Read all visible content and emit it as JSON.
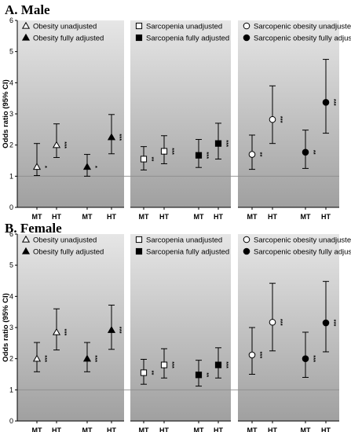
{
  "chart_data": [
    {
      "type": "scatter",
      "title": "A. Male",
      "ylabel": "Odds ratio (95% CI)",
      "ylim": [
        0,
        6
      ],
      "yticks": [
        0,
        1,
        2,
        3,
        4,
        5,
        6
      ],
      "reference_line": 1,
      "grid": false,
      "groups": [
        {
          "legend": [
            {
              "label": "Obesity unadjusted",
              "marker": "triangle-open"
            },
            {
              "label": "Obesity fully adjusted",
              "marker": "triangle-filled"
            }
          ],
          "points": [
            {
              "x": "MT",
              "series": "Obesity unadjusted",
              "marker": "triangle-open",
              "or": 1.3,
              "lo": 1.02,
              "hi": 2.05,
              "sig": "*"
            },
            {
              "x": "HT",
              "series": "Obesity unadjusted",
              "marker": "triangle-open",
              "or": 2.0,
              "lo": 1.6,
              "hi": 2.68,
              "sig": "***"
            },
            {
              "x": "MT",
              "series": "Obesity fully adjusted",
              "marker": "triangle-filled",
              "or": 1.3,
              "lo": 1.0,
              "hi": 1.7,
              "sig": "*"
            },
            {
              "x": "HT",
              "series": "Obesity fully adjusted",
              "marker": "triangle-filled",
              "or": 2.25,
              "lo": 1.72,
              "hi": 2.98,
              "sig": "***"
            }
          ]
        },
        {
          "legend": [
            {
              "label": "Sarcopenia unadjusted",
              "marker": "square-open"
            },
            {
              "label": "Sarcopenia fully adjusted",
              "marker": "square-filled"
            }
          ],
          "points": [
            {
              "x": "MT",
              "series": "Sarcopenia unadjusted",
              "marker": "square-open",
              "or": 1.55,
              "lo": 1.2,
              "hi": 1.95,
              "sig": "**"
            },
            {
              "x": "HT",
              "series": "Sarcopenia unadjusted",
              "marker": "square-open",
              "or": 1.8,
              "lo": 1.4,
              "hi": 2.3,
              "sig": "***"
            },
            {
              "x": "MT",
              "series": "Sarcopenia fully adjusted",
              "marker": "square-filled",
              "or": 1.67,
              "lo": 1.28,
              "hi": 2.18,
              "sig": "***"
            },
            {
              "x": "HT",
              "series": "Sarcopenia fully adjusted",
              "marker": "square-filled",
              "or": 2.05,
              "lo": 1.55,
              "hi": 2.7,
              "sig": "***"
            }
          ]
        },
        {
          "legend": [
            {
              "label": "Sarcopenic obesity unadjusted",
              "marker": "circle-open"
            },
            {
              "label": "Sarcopenic obesity fully adjusted",
              "marker": "circle-filled"
            }
          ],
          "points": [
            {
              "x": "MT",
              "series": "Sarcopenic obesity unadjusted",
              "marker": "circle-open",
              "or": 1.7,
              "lo": 1.22,
              "hi": 2.32,
              "sig": "**"
            },
            {
              "x": "HT",
              "series": "Sarcopenic obesity unadjusted",
              "marker": "circle-open",
              "or": 2.82,
              "lo": 2.05,
              "hi": 3.9,
              "sig": "***"
            },
            {
              "x": "MT",
              "series": "Sarcopenic obesity fully adjusted",
              "marker": "circle-filled",
              "or": 1.77,
              "lo": 1.25,
              "hi": 2.48,
              "sig": "**"
            },
            {
              "x": "HT",
              "series": "Sarcopenic obesity fully adjusted",
              "marker": "circle-filled",
              "or": 3.37,
              "lo": 2.38,
              "hi": 4.75,
              "sig": "***"
            }
          ]
        }
      ]
    },
    {
      "type": "scatter",
      "title": "B. Female",
      "ylabel": "Odds ratio (95% CI)",
      "ylim": [
        0,
        6
      ],
      "yticks": [
        0,
        1,
        2,
        3,
        4,
        5,
        6
      ],
      "reference_line": 1,
      "grid": false,
      "groups": [
        {
          "legend": [
            {
              "label": "Obesity unadjusted",
              "marker": "triangle-open"
            },
            {
              "label": "Obesity fully adjusted",
              "marker": "triangle-filled"
            }
          ],
          "points": [
            {
              "x": "MT",
              "series": "Obesity unadjusted",
              "marker": "triangle-open",
              "or": 2.0,
              "lo": 1.58,
              "hi": 2.52,
              "sig": "***"
            },
            {
              "x": "HT",
              "series": "Obesity unadjusted",
              "marker": "triangle-open",
              "or": 2.85,
              "lo": 2.28,
              "hi": 3.6,
              "sig": "***"
            },
            {
              "x": "MT",
              "series": "Obesity fully adjusted",
              "marker": "triangle-filled",
              "or": 2.0,
              "lo": 1.58,
              "hi": 2.52,
              "sig": "***"
            },
            {
              "x": "HT",
              "series": "Obesity fully adjusted",
              "marker": "triangle-filled",
              "or": 2.92,
              "lo": 2.3,
              "hi": 3.72,
              "sig": "***"
            }
          ]
        },
        {
          "legend": [
            {
              "label": "Sarcopenia unadjusted",
              "marker": "square-open"
            },
            {
              "label": "Sarcopenia fully adjusted",
              "marker": "square-filled"
            }
          ],
          "points": [
            {
              "x": "MT",
              "series": "Sarcopenia unadjusted",
              "marker": "square-open",
              "or": 1.55,
              "lo": 1.18,
              "hi": 1.98,
              "sig": "**"
            },
            {
              "x": "HT",
              "series": "Sarcopenia unadjusted",
              "marker": "square-open",
              "or": 1.8,
              "lo": 1.38,
              "hi": 2.32,
              "sig": "***"
            },
            {
              "x": "MT",
              "series": "Sarcopenia fully adjusted",
              "marker": "square-filled",
              "or": 1.48,
              "lo": 1.12,
              "hi": 1.95,
              "sig": "**"
            },
            {
              "x": "HT",
              "series": "Sarcopenia fully adjusted",
              "marker": "square-filled",
              "or": 1.8,
              "lo": 1.38,
              "hi": 2.35,
              "sig": "***"
            }
          ]
        },
        {
          "legend": [
            {
              "label": "Sarcopenic obesity unadjusted",
              "marker": "circle-open"
            },
            {
              "label": "Sarcopenic obesity fully adjusted",
              "marker": "circle-filled"
            }
          ],
          "points": [
            {
              "x": "MT",
              "series": "Sarcopenic obesity unadjusted",
              "marker": "circle-open",
              "or": 2.12,
              "lo": 1.5,
              "hi": 3.0,
              "sig": "***"
            },
            {
              "x": "HT",
              "series": "Sarcopenic obesity unadjusted",
              "marker": "circle-open",
              "or": 3.17,
              "lo": 2.25,
              "hi": 4.42,
              "sig": "***"
            },
            {
              "x": "MT",
              "series": "Sarcopenic obesity fully adjusted",
              "marker": "circle-filled",
              "or": 2.0,
              "lo": 1.4,
              "hi": 2.85,
              "sig": "***"
            },
            {
              "x": "HT",
              "series": "Sarcopenic obesity fully adjusted",
              "marker": "circle-filled",
              "or": 3.15,
              "lo": 2.22,
              "hi": 4.48,
              "sig": "***"
            }
          ]
        }
      ]
    }
  ],
  "colors": {
    "panel_top": "#e6e6e6",
    "panel_bottom": "#a0a0a0",
    "reference_line": "#8c8c8c",
    "marks": "#000000",
    "background": "#ffffff"
  }
}
